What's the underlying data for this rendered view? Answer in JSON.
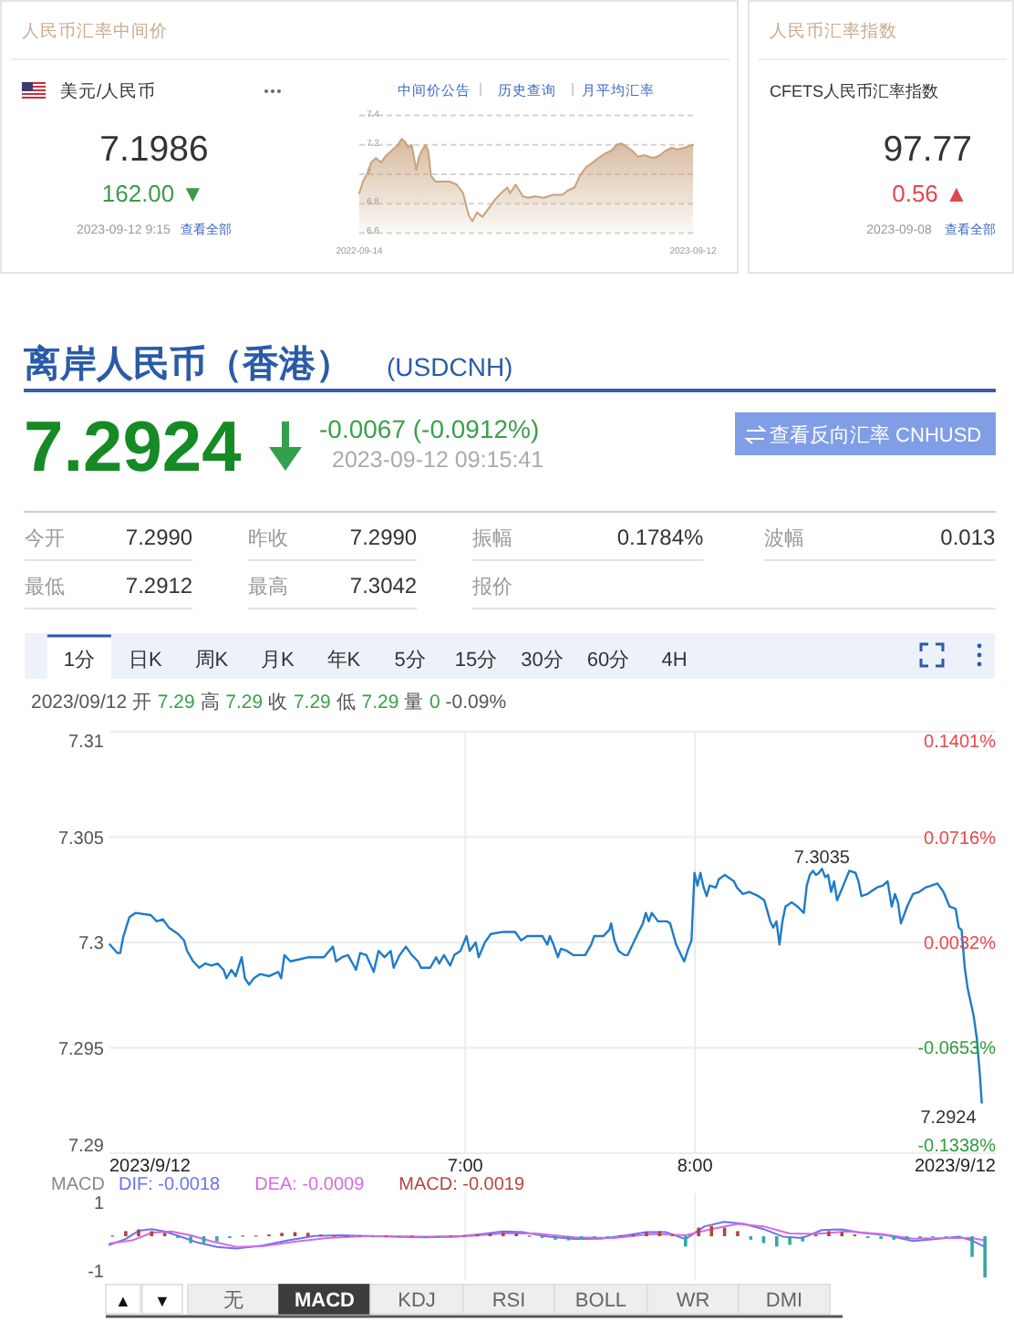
{
  "chart_data": [
    {
      "type": "other",
      "title": "人民币汇率中间价",
      "subtitle": "美元/人民币",
      "annotations": [
        "7.1986",
        "162.00 ▼",
        "2023-09-12 9:15",
        "查看全部"
      ]
    },
    {
      "type": "area",
      "annotations": [
        "中间价公告",
        "历史查询",
        "月平均汇率"
      ],
      "x": [
        "2022-09-14",
        "2022-09-18",
        "2022-09-23",
        "2022-09-27",
        "2022-10-02",
        "2022-10-08",
        "2022-10-12",
        "2022-10-19",
        "2022-10-26",
        "2022-10-30",
        "2022-11-03",
        "2022-11-06",
        "2022-11-10",
        "2022-11-15",
        "2022-11-18",
        "2022-11-21",
        "2022-11-25",
        "2022-11-28",
        "2022-12-01",
        "2022-12-06",
        "2022-12-13",
        "2022-12-21",
        "2022-12-29",
        "2023-01-05",
        "2023-01-09",
        "2023-01-11",
        "2023-01-15",
        "2023-01-20",
        "2023-01-26",
        "2023-02-02",
        "2023-02-09",
        "2023-02-15",
        "2023-02-22",
        "2023-02-25",
        "2023-03-03",
        "2023-03-07",
        "2023-03-11",
        "2023-03-17",
        "2023-03-24",
        "2023-04-03",
        "2023-04-13",
        "2023-04-23",
        "2023-04-29",
        "2023-05-06",
        "2023-05-12",
        "2023-05-19",
        "2023-05-26",
        "2023-06-01",
        "2023-06-08",
        "2023-06-15",
        "2023-06-21",
        "2023-06-26",
        "2023-07-01",
        "2023-07-08",
        "2023-07-14",
        "2023-07-21",
        "2023-07-31",
        "2023-08-07",
        "2023-08-13",
        "2023-08-20",
        "2023-08-26",
        "2023-09-02",
        "2023-09-12"
      ],
      "values": [
        6.87,
        6.95,
        7.01,
        7.08,
        7.11,
        7.08,
        7.12,
        7.16,
        7.2,
        7.24,
        7.22,
        7.18,
        7.2,
        7.03,
        7.12,
        7.16,
        7.2,
        7.16,
        6.99,
        6.95,
        6.95,
        6.95,
        6.93,
        6.87,
        6.77,
        6.72,
        6.68,
        6.74,
        6.71,
        6.77,
        6.83,
        6.87,
        6.91,
        6.87,
        6.93,
        6.89,
        6.85,
        6.84,
        6.85,
        6.84,
        6.86,
        6.86,
        6.89,
        6.91,
        6.99,
        7.05,
        7.08,
        7.11,
        7.14,
        7.16,
        7.2,
        7.21,
        7.19,
        7.16,
        7.12,
        7.13,
        7.11,
        7.13,
        7.16,
        7.18,
        7.17,
        7.18,
        7.2
      ],
      "color": "#c9a27c",
      "xlim": [
        "2022-09-14",
        "2023-09-12"
      ],
      "xticks": [
        "2022-09-14",
        "2023-09-12"
      ],
      "ylim": [
        6.6,
        7.4
      ],
      "yticks": [
        6.6,
        6.8,
        7,
        7.2,
        7.4
      ],
      "grid": "y"
    },
    {
      "type": "other",
      "title": "人民币汇率指数",
      "annotations": [
        "CFETS人民币汇率指数",
        "97.77",
        "0.56 ▲",
        "2023-09-08",
        "查看全部"
      ]
    },
    {
      "type": "line",
      "title": "离岸人民币（香港）",
      "subtitle": "(USDCNH)",
      "annotations": [
        "7.2924",
        "-0.0067 (-0.0912%)",
        "2023-09-12 09:15:41",
        "查看反向汇率 CNHUSD",
        "今开",
        "7.2990",
        "昨收",
        "7.2990",
        "振幅",
        "0.1784%",
        "波幅",
        "0.013",
        "最低",
        "7.2912",
        "最高",
        "7.3042",
        "报价",
        "1分",
        "日K",
        "周K",
        "月K",
        "年K",
        "5分",
        "15分",
        "30分",
        "60分",
        "4H",
        "2023/09/12 开 7.29 高 7.29 收 7.29 低 7.29 量 0 -0.09%",
        {
          "text": "7.3035",
          "x": 8.553,
          "y": 7.3035
        },
        {
          "text": "7.2924",
          "x": 9.249,
          "y": 7.2924
        }
      ],
      "x": [
        5.452,
        5.484,
        5.497,
        5.511,
        5.537,
        5.563,
        5.63,
        5.656,
        5.683,
        5.709,
        5.749,
        5.775,
        5.788,
        5.815,
        5.841,
        5.868,
        5.894,
        5.921,
        5.947,
        5.96,
        5.981,
        6.0,
        6.026,
        6.04,
        6.058,
        6.079,
        6.106,
        6.146,
        6.185,
        6.198,
        6.212,
        6.238,
        6.278,
        6.317,
        6.384,
        6.423,
        6.437,
        6.463,
        6.489,
        6.524,
        6.542,
        6.569,
        6.601,
        6.622,
        6.648,
        6.675,
        6.688,
        6.714,
        6.741,
        6.767,
        6.794,
        6.807,
        6.847,
        6.873,
        6.886,
        6.907,
        6.934,
        6.952,
        6.979,
        7.005,
        7.019,
        7.045,
        7.058,
        7.085,
        7.111,
        7.164,
        7.217,
        7.243,
        7.27,
        7.283,
        7.336,
        7.357,
        7.368,
        7.384,
        7.403,
        7.416,
        7.442,
        7.469,
        7.522,
        7.548,
        7.561,
        7.601,
        7.627,
        7.635,
        7.649,
        7.667,
        7.693,
        7.707,
        7.746,
        7.773,
        7.786,
        7.799,
        7.812,
        7.839,
        7.879,
        7.892,
        7.918,
        7.931,
        7.953,
        7.971,
        7.985,
        7.998,
        8.011,
        8.024,
        8.038,
        8.051,
        8.064,
        8.091,
        8.104,
        8.13,
        8.157,
        8.17,
        8.183,
        8.209,
        8.236,
        8.276,
        8.302,
        8.328,
        8.341,
        8.355,
        8.368,
        8.381,
        8.394,
        8.421,
        8.447,
        8.474,
        8.487,
        8.5,
        8.514,
        8.527,
        8.54,
        8.553,
        8.567,
        8.58,
        8.593,
        8.606,
        8.619,
        8.646,
        8.672,
        8.699,
        8.712,
        8.725,
        8.752,
        8.765,
        8.791,
        8.818,
        8.839,
        8.857,
        8.871,
        8.884,
        8.897,
        8.924,
        8.95,
        8.977,
        9.003,
        9.03,
        9.056,
        9.082,
        9.109,
        9.135,
        9.149,
        9.161,
        9.175,
        9.188,
        9.214,
        9.228,
        9.241,
        9.249
      ],
      "values": [
        7.2999,
        7.2995,
        7.2995,
        7.3003,
        7.3012,
        7.3014,
        7.3013,
        7.301,
        7.3011,
        7.3007,
        7.3004,
        7.3001,
        7.2996,
        7.2991,
        7.2988,
        7.299,
        7.2989,
        7.299,
        7.2987,
        7.2983,
        7.2987,
        7.2984,
        7.2993,
        7.2983,
        7.298,
        7.2983,
        7.2985,
        7.2984,
        7.2986,
        7.2983,
        7.2994,
        7.2991,
        7.2992,
        7.2993,
        7.2993,
        7.2998,
        7.2991,
        7.2993,
        7.2994,
        7.2987,
        7.2995,
        7.2994,
        7.2986,
        7.2996,
        7.2993,
        7.2996,
        7.2988,
        7.2994,
        7.2998,
        7.2994,
        7.2991,
        7.2988,
        7.2988,
        7.2993,
        7.299,
        7.2994,
        7.2989,
        7.2994,
        7.2996,
        7.3003,
        7.2996,
        7.3,
        7.2993,
        7.3,
        7.3004,
        7.3005,
        7.3005,
        7.3001,
        7.3003,
        7.3003,
        7.3003,
        7.2999,
        7.3003,
        7.2999,
        7.2993,
        7.2997,
        7.2996,
        7.2994,
        7.2994,
        7.2999,
        7.3003,
        7.3003,
        7.3006,
        7.3009,
        7.3001,
        7.2996,
        7.2994,
        7.2994,
        7.3003,
        7.3009,
        7.3014,
        7.301,
        7.3014,
        7.301,
        7.301,
        7.3009,
        7.2999,
        7.2996,
        7.2991,
        7.2997,
        7.3001,
        7.3033,
        7.3027,
        7.3033,
        7.3026,
        7.3022,
        7.3027,
        7.3026,
        7.303,
        7.3032,
        7.303,
        7.3029,
        7.3026,
        7.3023,
        7.3024,
        7.3022,
        7.302,
        7.301,
        7.3007,
        7.301,
        7.2999,
        7.301,
        7.3017,
        7.3019,
        7.3017,
        7.3014,
        7.3027,
        7.3032,
        7.3034,
        7.3032,
        7.3033,
        7.3035,
        7.3031,
        7.3032,
        7.3024,
        7.3029,
        7.302,
        7.3027,
        7.3034,
        7.3033,
        7.3029,
        7.3022,
        7.3023,
        7.3024,
        7.3026,
        7.3027,
        7.3029,
        7.3017,
        7.3023,
        7.3019,
        7.3009,
        7.3017,
        7.3023,
        7.3024,
        7.3026,
        7.3027,
        7.3028,
        7.3024,
        7.3017,
        7.3016,
        7.3007,
        7.3006,
        7.2988,
        7.2978,
        7.2965,
        7.2954,
        7.2937,
        7.2924
      ],
      "color": "#1f7bc8",
      "xlim": [
        5.45,
        9.31
      ],
      "xticks": [
        {
          "value": 5.45,
          "label": "2023/9/12"
        },
        {
          "value": 7,
          "label": "7:00"
        },
        {
          "value": 8,
          "label": "8:00"
        },
        {
          "value": 9.31,
          "label": "2023/9/12"
        }
      ],
      "ylim": [
        7.29,
        7.31
      ],
      "yticks": [
        7.29,
        7.295,
        7.3,
        7.305,
        7.31
      ],
      "y2lim": [
        -0.1338,
        0.1401
      ],
      "y2ticks": [
        {
          "value": -0.1338,
          "label": "-0.1338%"
        },
        {
          "value": -0.0653,
          "label": "-0.0653%"
        },
        {
          "value": 0.0032,
          "label": "0.0032%"
        },
        {
          "value": 0.0716,
          "label": "0.0716%"
        },
        {
          "value": 0.1401,
          "label": "0.1401%"
        }
      ],
      "grid": true
    },
    {
      "type": "line",
      "title": "MACD",
      "annotations": [
        "▲",
        "▼",
        "无",
        "MACD",
        "KDJ",
        "RSI",
        "BOLL",
        "WR",
        "DMI"
      ],
      "series": [
        {
          "name": "DIF: -0.0018",
          "color": "#6b73ee",
          "x": [
            5.45,
            5.52,
            5.577,
            5.634,
            5.69,
            5.761,
            5.832,
            5.917,
            6.002,
            6.116,
            6.229,
            6.342,
            6.456,
            6.569,
            6.683,
            6.824,
            6.966,
            7.079,
            7.164,
            7.249,
            7.363,
            7.476,
            7.59,
            7.703,
            7.788,
            7.873,
            7.958,
            8.043,
            8.128,
            8.213,
            8.298,
            8.383,
            8.468,
            8.553,
            8.638,
            8.723,
            8.837,
            8.95,
            9.063,
            9.148,
            9.205,
            9.262
          ],
          "values": [
            -0.25,
            -0.08,
            0.16,
            0.21,
            0.14,
            -0.01,
            -0.18,
            -0.31,
            -0.36,
            -0.27,
            -0.12,
            0.01,
            0.03,
            0.01,
            -0.01,
            -0.03,
            -0.01,
            0.07,
            0.14,
            0.12,
            -0.01,
            -0.08,
            -0.07,
            0.03,
            0.12,
            0.12,
            -0.08,
            0.29,
            0.42,
            0.36,
            0.21,
            -0.01,
            -0.05,
            0.18,
            0.2,
            0.1,
            0.03,
            -0.14,
            -0.07,
            -0.01,
            -0.12,
            -0.31
          ]
        },
        {
          "name": "DEA: -0.0009",
          "color": "#d46be0",
          "x": [
            5.45,
            5.549,
            5.634,
            5.719,
            5.804,
            5.889,
            6.002,
            6.116,
            6.257,
            6.399,
            6.569,
            6.824,
            7.023,
            7.164,
            7.306,
            7.476,
            7.646,
            7.816,
            7.958,
            8.071,
            8.185,
            8.298,
            8.412,
            8.525,
            8.667,
            8.808,
            8.95,
            9.092,
            9.205,
            9.262
          ],
          "values": [
            -0.21,
            -0.12,
            0.1,
            0.14,
            0.03,
            -0.14,
            -0.31,
            -0.29,
            -0.16,
            -0.05,
            0.01,
            -0.01,
            0.01,
            0.08,
            0.08,
            -0.03,
            -0.05,
            0.07,
            0.03,
            0.21,
            0.36,
            0.29,
            0.08,
            0.07,
            0.14,
            0.07,
            -0.07,
            -0.05,
            -0.05,
            -0.12
          ]
        },
        {
          "name": "MACD: -0.0019",
          "type": "bar",
          "color": "#b5443f",
          "x": [
            5.464,
            5.521,
            5.577,
            5.634,
            5.691,
            5.748,
            5.804,
            5.861,
            5.918,
            5.974,
            6.031,
            6.088,
            6.145,
            6.201,
            6.258,
            6.315,
            6.371,
            6.428,
            6.485,
            6.541,
            6.598,
            6.655,
            6.712,
            6.768,
            6.825,
            6.882,
            6.938,
            6.995,
            7.052,
            7.108,
            7.165,
            7.222,
            7.279,
            7.335,
            7.392,
            7.449,
            7.505,
            7.562,
            7.619,
            7.676,
            7.732,
            7.789,
            7.846,
            7.902,
            7.959,
            8.016,
            8.072,
            8.129,
            8.186,
            8.243,
            8.299,
            8.356,
            8.413,
            8.469,
            8.526,
            8.583,
            8.64,
            8.696,
            8.753,
            8.81,
            8.866,
            8.923,
            8.98,
            9.036,
            9.093,
            9.15,
            9.207,
            9.263
          ],
          "values": [
            0.02,
            0.15,
            0.2,
            0.15,
            0.1,
            -0.05,
            -0.2,
            -0.2,
            -0.15,
            -0.05,
            0.02,
            0.02,
            0.05,
            0.1,
            0.12,
            0.1,
            0.05,
            0.02,
            0.02,
            0.02,
            -0.02,
            0.02,
            -0.03,
            0.02,
            -0.03,
            -0.02,
            0.02,
            0.02,
            0.05,
            0.08,
            0.1,
            0.08,
            0.02,
            -0.05,
            -0.1,
            -0.12,
            -0.08,
            -0.05,
            -0.02,
            0.03,
            0.05,
            0.12,
            0.15,
            0.05,
            -0.3,
            0.25,
            0.3,
            0.25,
            0.15,
            -0.1,
            -0.2,
            -0.3,
            -0.25,
            -0.15,
            0.05,
            0.15,
            0.12,
            0.05,
            -0.05,
            -0.08,
            -0.1,
            -0.1,
            -0.05,
            -0.03,
            -0.02,
            -0.05,
            -0.6,
            -1.2
          ],
          "colors": [
            "#b5443f",
            "#b5443f",
            "#b5443f",
            "#b5443f",
            "#b5443f",
            "#36a6a6",
            "#36a6a6",
            "#36a6a6",
            "#36a6a6",
            "#36a6a6",
            "#b5443f",
            "#b5443f",
            "#b5443f",
            "#b5443f",
            "#b5443f",
            "#b5443f",
            "#b5443f",
            "#b5443f",
            "#b5443f",
            "#b5443f",
            "#36a6a6",
            "#b5443f",
            "#36a6a6",
            "#b5443f",
            "#36a6a6",
            "#36a6a6",
            "#b5443f",
            "#b5443f",
            "#b5443f",
            "#b5443f",
            "#b5443f",
            "#b5443f",
            "#b5443f",
            "#36a6a6",
            "#36a6a6",
            "#36a6a6",
            "#36a6a6",
            "#36a6a6",
            "#36a6a6",
            "#b5443f",
            "#b5443f",
            "#b5443f",
            "#b5443f",
            "#b5443f",
            "#36a6a6",
            "#b5443f",
            "#b5443f",
            "#b5443f",
            "#b5443f",
            "#36a6a6",
            "#36a6a6",
            "#36a6a6",
            "#36a6a6",
            "#36a6a6",
            "#b5443f",
            "#b5443f",
            "#b5443f",
            "#b5443f",
            "#36a6a6",
            "#36a6a6",
            "#36a6a6",
            "#36a6a6",
            "#36a6a6",
            "#36a6a6",
            "#36a6a6",
            "#36a6a6",
            "#36a6a6",
            "#36a6a6"
          ]
        }
      ],
      "xlim": [
        5.45,
        9.31
      ],
      "xticks": [
        {
          "value": 7,
          "label": null
        },
        {
          "value": 8,
          "label": null
        }
      ],
      "ylim": [
        -1.3,
        1.25
      ],
      "yticks": [
        -1,
        1
      ],
      "tick_labels": "y",
      "grid": "x",
      "legend": "top"
    }
  ]
}
